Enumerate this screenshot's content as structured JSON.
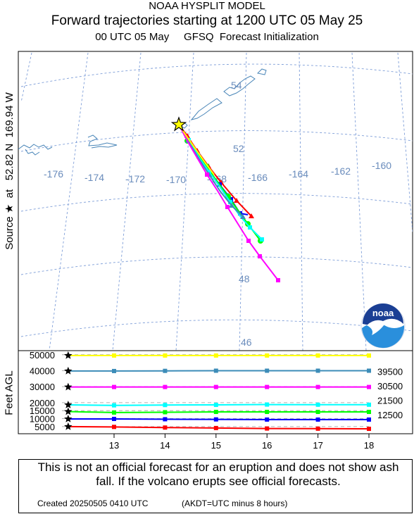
{
  "header": {
    "title": "NOAA HYSPLIT MODEL",
    "subtitle": "Forward trajectories starting at 1200 UTC 05 May 25",
    "meteo": "00 UTC 05 May     GFSQ  Forecast Initialization"
  },
  "side_label": "Source ★  at   52.82 N  169.94 W",
  "map": {
    "lon_labels": [
      "-176",
      "-174",
      "-172",
      "-170",
      "-168",
      "-166",
      "-164",
      "-162",
      "-160"
    ],
    "lat_labels": [
      "54",
      "52",
      "48",
      "46"
    ],
    "logo_text": "noaa",
    "colors": {
      "grid": "#7e9ed8",
      "coast": "#4a86b8",
      "label": "#6a8cbc"
    }
  },
  "chart_data": {
    "type": "line",
    "title": "",
    "ylabel": "Feet AGL",
    "xlabel": "",
    "x_ticks": [
      "13",
      "14",
      "15",
      "16",
      "17",
      "18"
    ],
    "y_ticks": [
      "50000",
      "40000",
      "30000",
      "20000",
      "15000",
      "10000",
      "5000"
    ],
    "right_labels": [
      "39500",
      "30500",
      "21500",
      "12500"
    ],
    "x": [
      12.1,
      13,
      14,
      15,
      16,
      17,
      18
    ],
    "ylim": [
      0,
      52000
    ],
    "series": [
      {
        "color": "#ffff00",
        "values": [
          49500,
          49500,
          49500,
          49500,
          49500,
          49500,
          49500
        ]
      },
      {
        "color": "#3c8cb8",
        "values": [
          39800,
          39800,
          39900,
          40000,
          40000,
          40000,
          40000
        ]
      },
      {
        "color": "#ff00ff",
        "values": [
          29800,
          29800,
          29800,
          29800,
          29800,
          29800,
          29800
        ]
      },
      {
        "color": "#00ffff",
        "values": [
          18600,
          18300,
          18500,
          18600,
          18800,
          18700,
          18700
        ]
      },
      {
        "color": "#00ff00",
        "values": [
          14400,
          13800,
          14000,
          14200,
          14200,
          14200,
          14200
        ]
      },
      {
        "color": "#0000ff",
        "values": [
          9800,
          9800,
          9600,
          9500,
          9400,
          9400,
          9400
        ]
      },
      {
        "color": "#ff0000",
        "values": [
          5000,
          4800,
          4400,
          4100,
          3800,
          3700,
          3600
        ]
      }
    ]
  },
  "footer": {
    "disclaimer": "This is not an official forecast for an eruption and does not show ash fall. If the volcano erupts see official forecasts.",
    "created": "Created 20250505 0410 UTC",
    "tz_note": "(AKDT=UTC minus 8 hours)"
  }
}
